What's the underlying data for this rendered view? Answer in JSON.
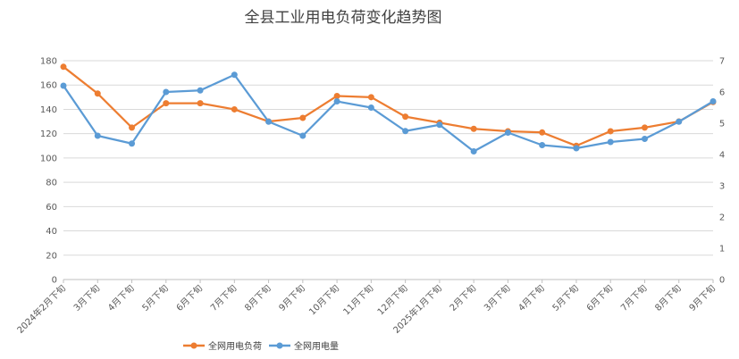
{
  "chart_data": {
    "type": "line",
    "title": "全县工业用电负荷变化趋势图",
    "categories": [
      "2024年2月下旬",
      "3月下旬",
      "4月下旬",
      "5月下旬",
      "6月下旬",
      "7月下旬",
      "8月下旬",
      "9月下旬",
      "10月下旬",
      "11月下旬",
      "12月下旬",
      "2025年1月下旬",
      "2月下旬",
      "3月下旬",
      "4月下旬",
      "5月下旬",
      "6月下旬",
      "7月下旬",
      "8月下旬",
      "9月下旬"
    ],
    "left_axis": {
      "min": 0,
      "max": 180,
      "step": 20,
      "ticks": [
        "0",
        "20",
        "40",
        "60",
        "80",
        "100",
        "120",
        "140",
        "160",
        "180"
      ]
    },
    "right_axis": {
      "min": 0,
      "max": 7,
      "step": 1,
      "ticks": [
        "0",
        "1",
        "2",
        "3",
        "4",
        "5",
        "6",
        "7"
      ]
    },
    "grid": true,
    "legend_position": "bottom-left",
    "series": [
      {
        "name": "全网用电负荷",
        "axis": "left",
        "color": "#ED7D31",
        "values": [
          175,
          153,
          125,
          145,
          145,
          140,
          130,
          133,
          151,
          150,
          134,
          129,
          124,
          122,
          121,
          110,
          122,
          125,
          130,
          146
        ]
      },
      {
        "name": "全网用电量",
        "axis": "right",
        "color": "#5B9BD5",
        "values": [
          6.2,
          4.6,
          4.35,
          6.0,
          6.05,
          6.55,
          5.05,
          4.6,
          5.7,
          5.5,
          4.75,
          4.95,
          4.1,
          4.7,
          4.3,
          4.2,
          4.4,
          4.5,
          5.05,
          5.7
        ]
      }
    ]
  }
}
